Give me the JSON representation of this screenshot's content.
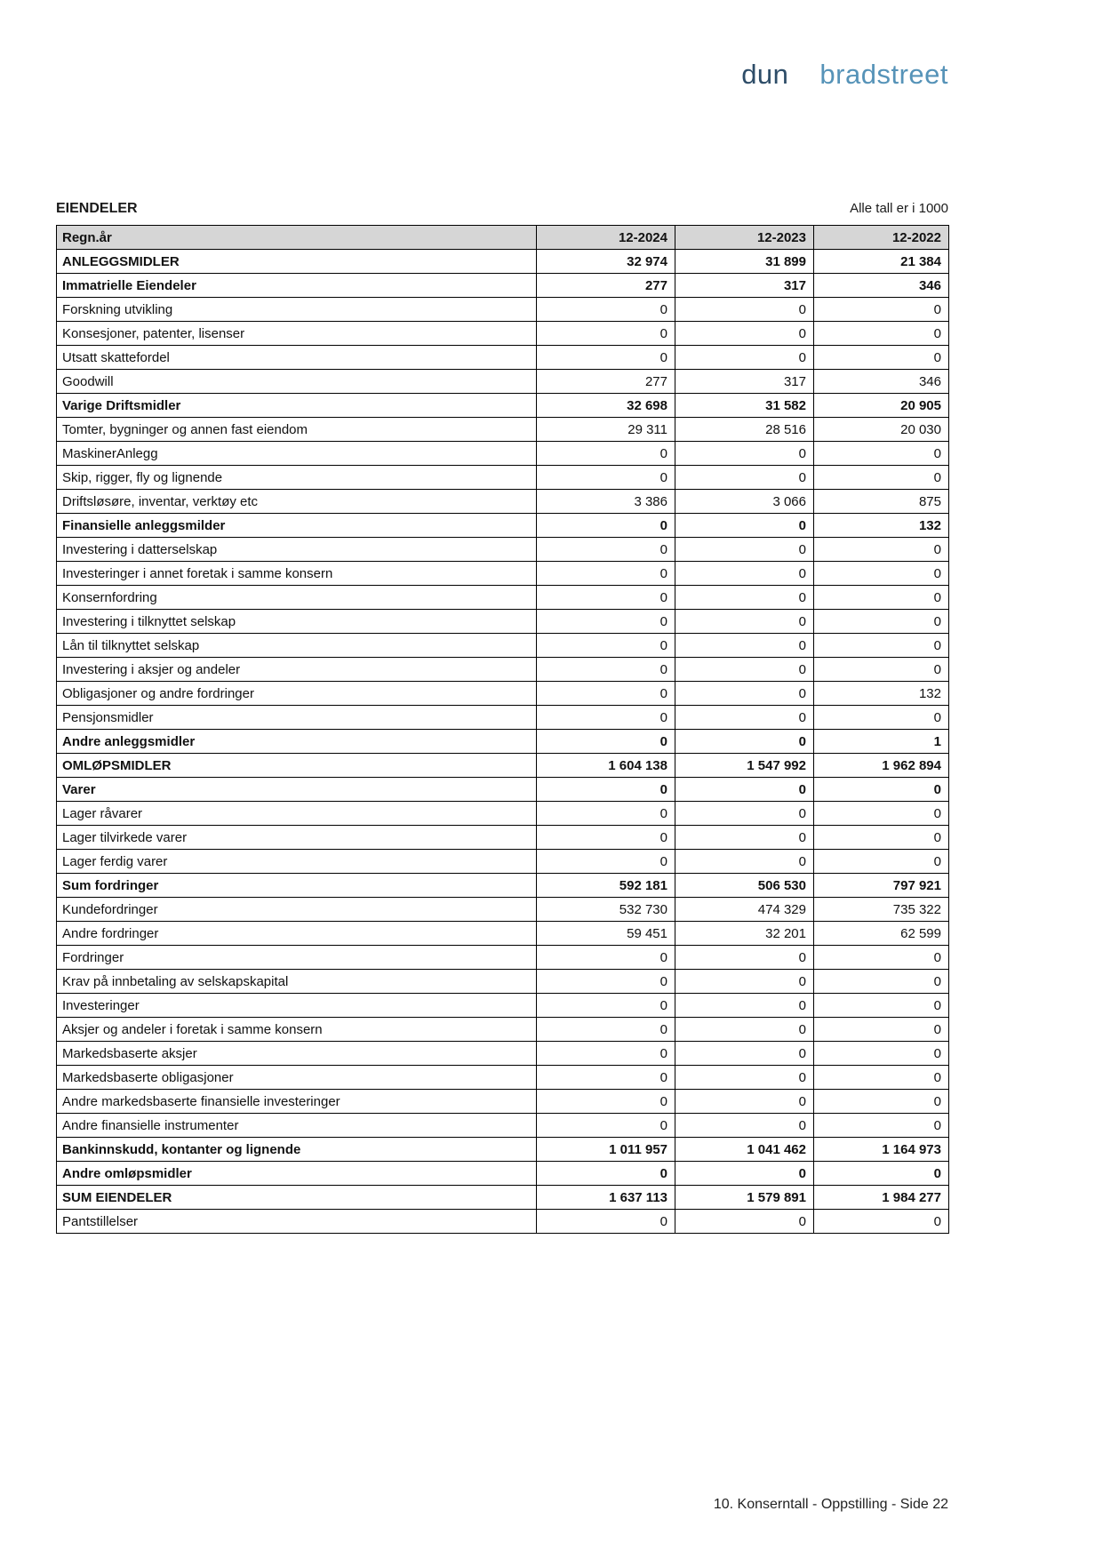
{
  "logo": {
    "part1": "dun",
    "amp": "&",
    "part2": "bradstreet",
    "colors": {
      "dun": "#2e4d68",
      "bradstreet": "#5693b8",
      "amp_light": "#55a8c2",
      "amp_dark": "#2e4d68"
    }
  },
  "header": {
    "title": "EIENDELER",
    "note": "Alle tall er i 1000"
  },
  "table": {
    "year_label": "Regn.år",
    "columns": [
      "12-2024",
      "12-2023",
      "12-2022"
    ],
    "header_bg": "#d6d6d6",
    "rows": [
      {
        "label": "ANLEGGSMIDLER",
        "values": [
          "32 974",
          "31 899",
          "21 384"
        ],
        "bold": true
      },
      {
        "label": "Immatrielle Eiendeler",
        "values": [
          "277",
          "317",
          "346"
        ],
        "bold": true
      },
      {
        "label": "Forskning utvikling",
        "values": [
          "0",
          "0",
          "0"
        ],
        "bold": false
      },
      {
        "label": "Konsesjoner, patenter, lisenser",
        "values": [
          "0",
          "0",
          "0"
        ],
        "bold": false
      },
      {
        "label": "Utsatt skattefordel",
        "values": [
          "0",
          "0",
          "0"
        ],
        "bold": false
      },
      {
        "label": "Goodwill",
        "values": [
          "277",
          "317",
          "346"
        ],
        "bold": false
      },
      {
        "label": "Varige Driftsmidler",
        "values": [
          "32 698",
          "31 582",
          "20 905"
        ],
        "bold": true
      },
      {
        "label": "Tomter, bygninger og annen fast eiendom",
        "values": [
          "29 311",
          "28 516",
          "20 030"
        ],
        "bold": false
      },
      {
        "label": "MaskinerAnlegg",
        "values": [
          "0",
          "0",
          "0"
        ],
        "bold": false
      },
      {
        "label": "Skip, rigger, fly og lignende",
        "values": [
          "0",
          "0",
          "0"
        ],
        "bold": false
      },
      {
        "label": "Driftsløsøre, inventar, verktøy etc",
        "values": [
          "3 386",
          "3 066",
          "875"
        ],
        "bold": false
      },
      {
        "label": "Finansielle anleggsmilder",
        "values": [
          "0",
          "0",
          "132"
        ],
        "bold": true
      },
      {
        "label": "Investering i datterselskap",
        "values": [
          "0",
          "0",
          "0"
        ],
        "bold": false
      },
      {
        "label": "Investeringer i annet foretak i samme konsern",
        "values": [
          "0",
          "0",
          "0"
        ],
        "bold": false
      },
      {
        "label": "Konsernfordring",
        "values": [
          "0",
          "0",
          "0"
        ],
        "bold": false
      },
      {
        "label": "Investering i tilknyttet selskap",
        "values": [
          "0",
          "0",
          "0"
        ],
        "bold": false
      },
      {
        "label": "Lån til tilknyttet selskap",
        "values": [
          "0",
          "0",
          "0"
        ],
        "bold": false
      },
      {
        "label": "Investering i aksjer og andeler",
        "values": [
          "0",
          "0",
          "0"
        ],
        "bold": false
      },
      {
        "label": "Obligasjoner og andre fordringer",
        "values": [
          "0",
          "0",
          "132"
        ],
        "bold": false
      },
      {
        "label": "Pensjonsmidler",
        "values": [
          "0",
          "0",
          "0"
        ],
        "bold": false
      },
      {
        "label": "Andre anleggsmidler",
        "values": [
          "0",
          "0",
          "1"
        ],
        "bold": true
      },
      {
        "label": "OMLØPSMIDLER",
        "values": [
          "1 604 138",
          "1 547 992",
          "1 962 894"
        ],
        "bold": true
      },
      {
        "label": "Varer",
        "values": [
          "0",
          "0",
          "0"
        ],
        "bold": true
      },
      {
        "label": "Lager råvarer",
        "values": [
          "0",
          "0",
          "0"
        ],
        "bold": false
      },
      {
        "label": "Lager tilvirkede varer",
        "values": [
          "0",
          "0",
          "0"
        ],
        "bold": false
      },
      {
        "label": "Lager ferdig varer",
        "values": [
          "0",
          "0",
          "0"
        ],
        "bold": false
      },
      {
        "label": "Sum fordringer",
        "values": [
          "592 181",
          "506 530",
          "797 921"
        ],
        "bold": true
      },
      {
        "label": "Kundefordringer",
        "values": [
          "532 730",
          "474 329",
          "735 322"
        ],
        "bold": false
      },
      {
        "label": "Andre fordringer",
        "values": [
          "59 451",
          "32 201",
          "62 599"
        ],
        "bold": false
      },
      {
        "label": "Fordringer",
        "values": [
          "0",
          "0",
          "0"
        ],
        "bold": false
      },
      {
        "label": "Krav på innbetaling av selskapskapital",
        "values": [
          "0",
          "0",
          "0"
        ],
        "bold": false
      },
      {
        "label": "Investeringer",
        "values": [
          "0",
          "0",
          "0"
        ],
        "bold": false
      },
      {
        "label": "Aksjer og andeler i foretak i samme konsern",
        "values": [
          "0",
          "0",
          "0"
        ],
        "bold": false
      },
      {
        "label": "Markedsbaserte aksjer",
        "values": [
          "0",
          "0",
          "0"
        ],
        "bold": false
      },
      {
        "label": "Markedsbaserte obligasjoner",
        "values": [
          "0",
          "0",
          "0"
        ],
        "bold": false
      },
      {
        "label": "Andre markedsbaserte finansielle investeringer",
        "values": [
          "0",
          "0",
          "0"
        ],
        "bold": false
      },
      {
        "label": "Andre finansielle instrumenter",
        "values": [
          "0",
          "0",
          "0"
        ],
        "bold": false
      },
      {
        "label": "Bankinnskudd, kontanter og lignende",
        "values": [
          "1 011 957",
          "1 041 462",
          "1 164 973"
        ],
        "bold": true
      },
      {
        "label": "Andre omløpsmidler",
        "values": [
          "0",
          "0",
          "0"
        ],
        "bold": true
      },
      {
        "label": "SUM EIENDELER",
        "values": [
          "1 637 113",
          "1 579 891",
          "1 984 277"
        ],
        "bold": true
      },
      {
        "label": "Pantstillelser",
        "values": [
          "0",
          "0",
          "0"
        ],
        "bold": false
      }
    ]
  },
  "footer": {
    "text": "10. Konserntall - Oppstilling - Side 22"
  }
}
